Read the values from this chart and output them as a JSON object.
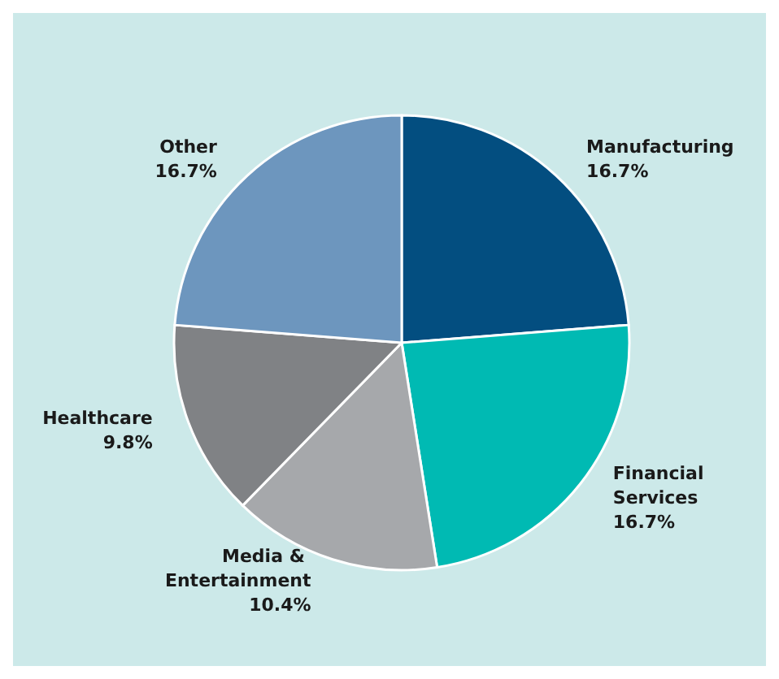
{
  "chart_data": {
    "type": "pie",
    "categories": [
      "Manufacturing",
      "Financial Services",
      "Media & Entertainment",
      "Healthcare",
      "Other"
    ],
    "values": [
      16.7,
      16.7,
      10.4,
      9.8,
      16.7
    ],
    "value_labels": [
      "16.7%",
      "16.7%",
      "10.4%",
      "9.8%",
      "16.7%"
    ],
    "colors": [
      "#034e80",
      "#00bab3",
      "#a6a8ab",
      "#808285",
      "#6d96be"
    ],
    "legend": false
  }
}
